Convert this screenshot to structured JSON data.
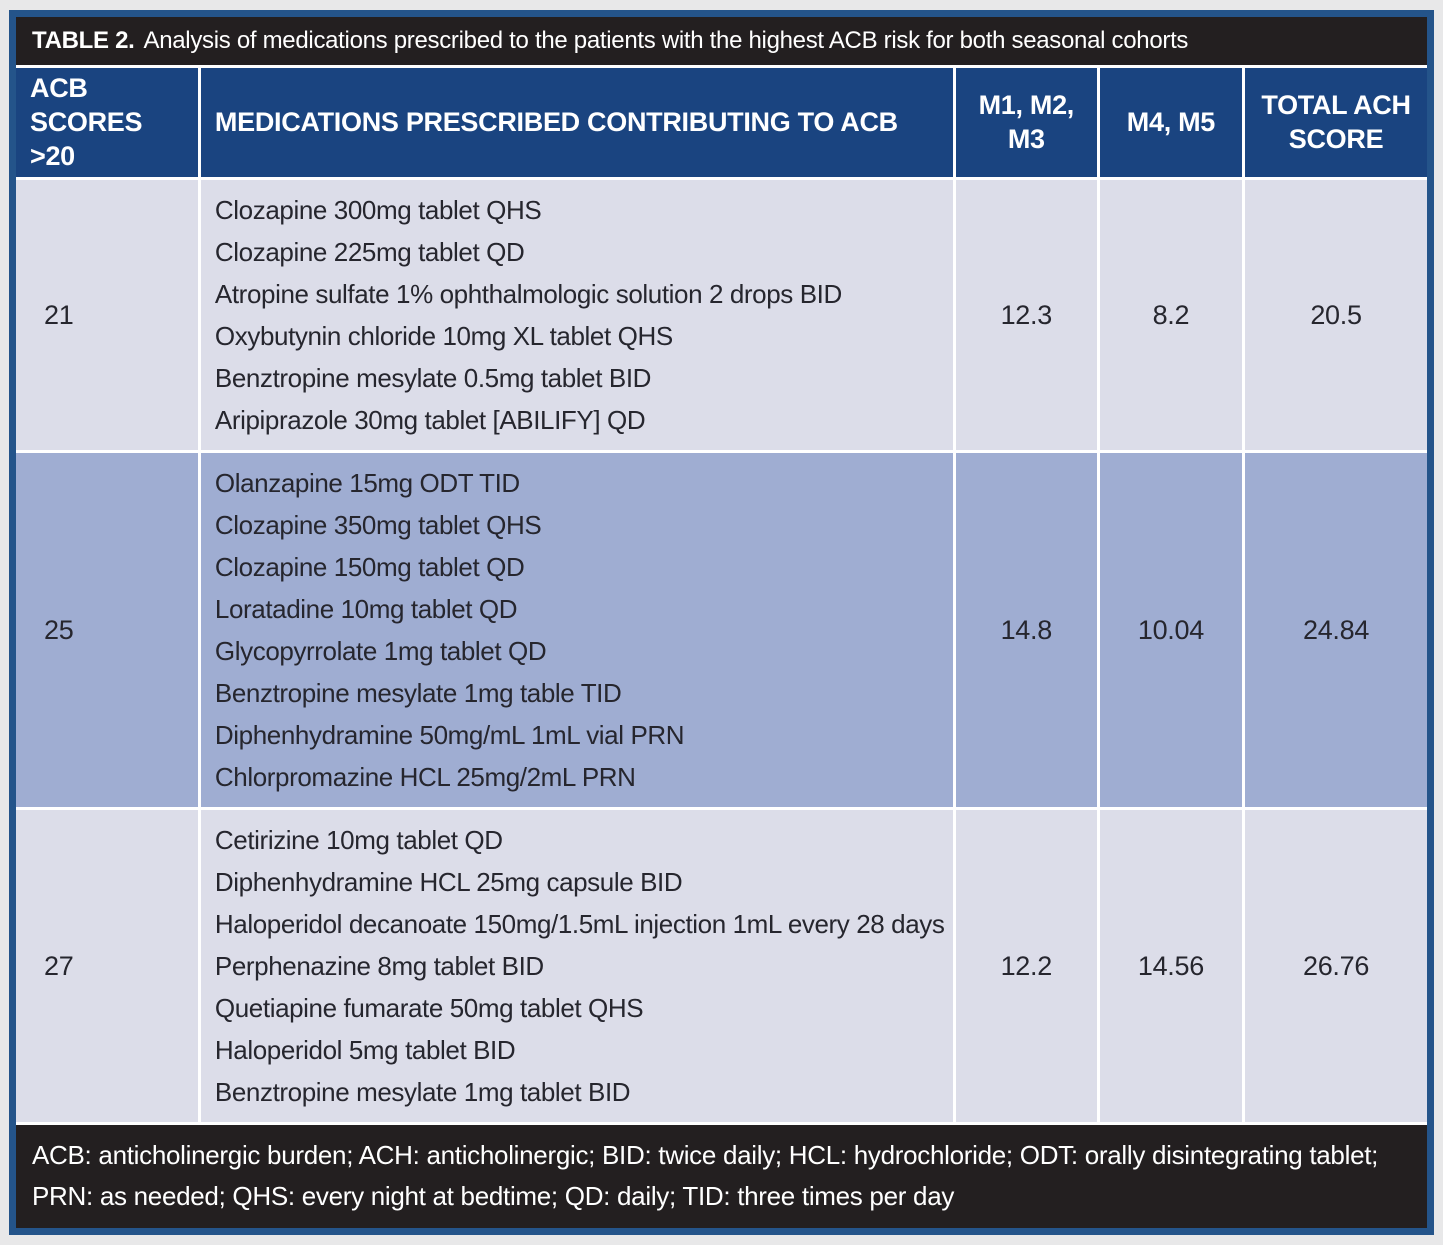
{
  "table": {
    "title_label": "TABLE 2.",
    "title_text": "Analysis of medications prescribed to the patients with the highest ACB risk for both seasonal cohorts",
    "columns": [
      "ACB SCORES >20",
      "MEDICATIONS PRESCRIBED CONTRIBUTING TO ACB",
      "M1, M2, M3",
      "M4, M5",
      "TOTAL ACH SCORE"
    ],
    "rows": [
      {
        "acb_score": "21",
        "medications": [
          "Clozapine 300mg tablet QHS",
          "Clozapine 225mg tablet QD",
          "Atropine sulfate 1% ophthalmologic solution 2 drops BID",
          "Oxybutynin chloride 10mg XL tablet QHS",
          "Benztropine mesylate 0.5mg tablet BID",
          "Aripiprazole 30mg tablet [ABILIFY] QD"
        ],
        "m1_m2_m3": "12.3",
        "m4_m5": "8.2",
        "total_ach": "20.5"
      },
      {
        "acb_score": "25",
        "medications": [
          "Olanzapine 15mg ODT TID",
          "Clozapine 350mg tablet QHS",
          "Clozapine 150mg tablet QD",
          "Loratadine 10mg tablet QD",
          "Glycopyrrolate 1mg tablet QD",
          "Benztropine mesylate 1mg table TID",
          "Diphenhydramine 50mg/mL 1mL vial PRN",
          "Chlorpromazine HCL 25mg/2mL PRN"
        ],
        "m1_m2_m3": "14.8",
        "m4_m5": "10.04",
        "total_ach": "24.84"
      },
      {
        "acb_score": "27",
        "medications": [
          "Cetirizine 10mg tablet QD",
          "Diphenhydramine HCL 25mg capsule BID",
          "Haloperidol decanoate 150mg/1.5mL injection 1mL every 28 days",
          "Perphenazine 8mg tablet BID",
          "Quetiapine fumarate 50mg tablet QHS",
          "Haloperidol 5mg tablet BID",
          "Benztropine mesylate 1mg tablet BID"
        ],
        "m1_m2_m3": "12.2",
        "m4_m5": "14.56",
        "total_ach": "26.76"
      }
    ],
    "footnote": "ACB: anticholinergic burden; ACH: anticholinergic; BID: twice daily; HCL: hydrochloride; ODT: orally disintegrating tablet; PRN: as needed; QHS: every night at bedtime; QD: daily; TID: three times per day",
    "colors": {
      "frame_border": "#24548a",
      "title_bg": "#231f20",
      "header_bg": "#1a4480",
      "row_light_bg": "#dcdde9",
      "row_medium_bg": "#9fadd2",
      "footnote_bg": "#231f20",
      "grid_line": "#ffffff",
      "body_text": "#26262e",
      "header_text": "#ffffff"
    }
  }
}
